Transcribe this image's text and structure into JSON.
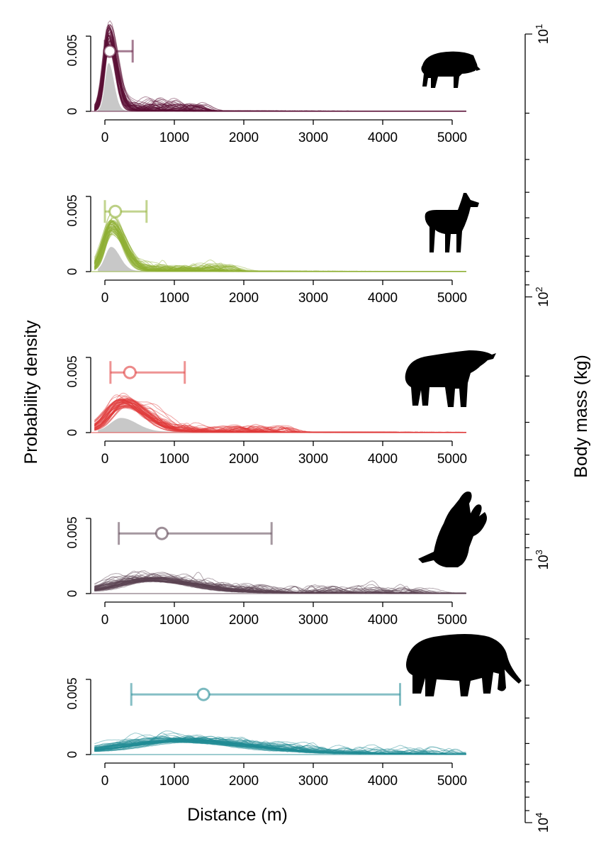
{
  "chart_data": {
    "type": "area",
    "ylabel": "Probability density",
    "xlabel": "Distance (m)",
    "right_axis": {
      "label": "Body mass (kg)",
      "scale": "log",
      "range": [
        10,
        10000
      ],
      "ticks": [
        {
          "base": "10",
          "exp": "1"
        },
        {
          "base": "10",
          "exp": "2"
        },
        {
          "base": "10",
          "exp": "3"
        },
        {
          "base": "10",
          "exp": "4"
        }
      ]
    },
    "panels": [
      {
        "animal": "peccary",
        "color": "#5a0f36",
        "xlim": [
          0,
          5200
        ],
        "ylim": [
          0,
          0.005
        ],
        "ytick_labels": [
          "0",
          "0.005"
        ],
        "xtick_labels": [
          "0",
          "1000",
          "2000",
          "3000",
          "4000",
          "5000"
        ],
        "peak_x": 60,
        "peak_y": 0.0058,
        "width": 110,
        "tail": 4e-05,
        "spread": 0.00045,
        "grey_peak": 0.0032,
        "point": {
          "mean": 70,
          "low": 0,
          "high": 400,
          "y": 0.004
        },
        "band": 0.00028
      },
      {
        "animal": "llama",
        "color": "#8fb033",
        "xlim": [
          0,
          5200
        ],
        "ylim": [
          0,
          0.005
        ],
        "ytick_labels": [
          "0",
          "0.005"
        ],
        "xtick_labels": [
          "0",
          "1000",
          "2000",
          "3000",
          "4000",
          "5000"
        ],
        "peak_x": 100,
        "peak_y": 0.0034,
        "width": 180,
        "tail": 5e-05,
        "spread": 0.0004,
        "grey_peak": 0.0016,
        "point": {
          "mean": 150,
          "low": 0,
          "high": 600,
          "y": 0.004
        },
        "band": 0.00025
      },
      {
        "animal": "tapir",
        "color": "#e03a3a",
        "xlim": [
          0,
          5200
        ],
        "ylim": [
          0,
          0.005
        ],
        "ytick_labels": [
          "0",
          "0.005"
        ],
        "xtick_labels": [
          "0",
          "1000",
          "2000",
          "3000",
          "4000",
          "5000"
        ],
        "peak_x": 260,
        "peak_y": 0.0022,
        "width": 320,
        "tail": 8e-05,
        "spread": 0.0004,
        "grey_peak": 0.0009,
        "point": {
          "mean": 360,
          "low": 80,
          "high": 1150,
          "y": 0.004
        },
        "band": 0.00025
      },
      {
        "animal": "ground sloth",
        "color": "#5b4352",
        "xlim": [
          0,
          5200
        ],
        "ylim": [
          0,
          0.005
        ],
        "ytick_labels": [
          "0",
          "0.005"
        ],
        "xtick_labels": [
          "0",
          "1000",
          "2000",
          "3000",
          "4000",
          "5000"
        ],
        "peak_x": 650,
        "peak_y": 0.001,
        "width": 650,
        "tail": 0.00012,
        "spread": 0.0005,
        "grey_peak": 0,
        "point": {
          "mean": 820,
          "low": 200,
          "high": 2400,
          "y": 0.004
        },
        "band": 0.00035
      },
      {
        "animal": "gomphothere",
        "color": "#228b95",
        "xlim": [
          0,
          5200
        ],
        "ylim": [
          0,
          0.005
        ],
        "ytick_labels": [
          "0",
          "0.005"
        ],
        "xtick_labels": [
          "0",
          "1000",
          "2000",
          "3000",
          "4000",
          "5000"
        ],
        "peak_x": 1100,
        "peak_y": 0.001,
        "width": 1000,
        "tail": 0.00015,
        "spread": 0.0004,
        "grey_peak": 0,
        "point": {
          "mean": 1420,
          "low": 380,
          "high": 4250,
          "y": 0.004
        },
        "band": 0.0003
      }
    ]
  }
}
